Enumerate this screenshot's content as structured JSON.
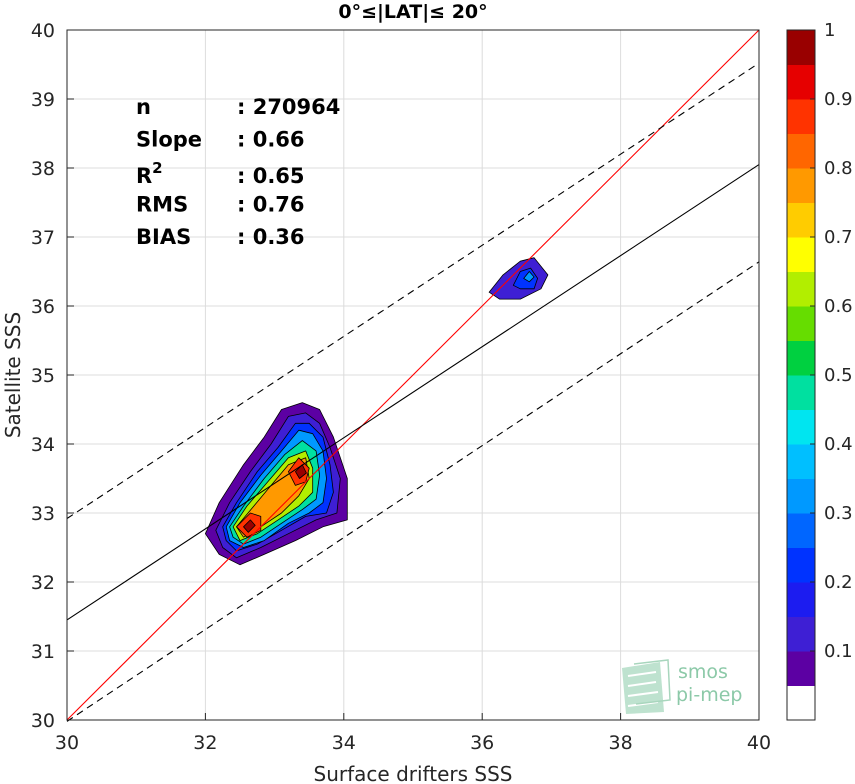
{
  "chart_data": {
    "type": "scatter",
    "title": "0°≤|LAT|≤ 20°",
    "xlabel": "Surface drifters SSS",
    "ylabel": "Satellite SSS",
    "xlim": [
      30,
      40
    ],
    "ylim": [
      30,
      40
    ],
    "xticks": [
      "30",
      "32",
      "34",
      "36",
      "38",
      "40"
    ],
    "yticks": [
      "30",
      "31",
      "32",
      "33",
      "34",
      "35",
      "36",
      "37",
      "38",
      "39",
      "40"
    ],
    "grid": true,
    "stats": [
      {
        "key": "n",
        "value": ": 270964"
      },
      {
        "key": "Slope",
        "value": ": 0.66"
      },
      {
        "key": "R",
        "sup": "2",
        "value": ": 0.65"
      },
      {
        "key": "RMS",
        "value": ": 0.76"
      },
      {
        "key": "BIAS",
        "value": ": 0.36"
      }
    ],
    "lines": {
      "identity": {
        "color": "#ff0000",
        "x": [
          30,
          40
        ],
        "y": [
          30,
          40
        ]
      },
      "regression": {
        "color": "#000000",
        "x": [
          30,
          40
        ],
        "y": [
          31.45,
          38.05
        ]
      },
      "upper_bound": {
        "color": "#000000",
        "style": "dashed",
        "x": [
          30,
          40
        ],
        "y": [
          32.92,
          39.52
        ]
      },
      "lower_bound": {
        "color": "#000000",
        "style": "dashed",
        "x": [
          30,
          40
        ],
        "y": [
          29.98,
          36.64
        ]
      }
    },
    "density_contours": [
      {
        "level": 0.05,
        "polygon": [
          [
            32.0,
            32.7
          ],
          [
            32.2,
            33.15
          ],
          [
            32.55,
            33.7
          ],
          [
            32.85,
            34.1
          ],
          [
            33.1,
            34.5
          ],
          [
            33.4,
            34.6
          ],
          [
            33.65,
            34.5
          ],
          [
            33.85,
            34.1
          ],
          [
            34.05,
            33.5
          ],
          [
            34.05,
            32.9
          ],
          [
            33.7,
            32.8
          ],
          [
            33.3,
            32.6
          ],
          [
            32.85,
            32.4
          ],
          [
            32.5,
            32.25
          ],
          [
            32.2,
            32.4
          ]
        ]
      },
      {
        "level": 0.1,
        "polygon": [
          [
            32.15,
            32.75
          ],
          [
            32.35,
            33.15
          ],
          [
            32.65,
            33.6
          ],
          [
            32.95,
            34.0
          ],
          [
            33.2,
            34.4
          ],
          [
            33.45,
            34.45
          ],
          [
            33.65,
            34.3
          ],
          [
            33.8,
            33.95
          ],
          [
            33.95,
            33.5
          ],
          [
            33.9,
            33.0
          ],
          [
            33.6,
            32.9
          ],
          [
            33.2,
            32.7
          ],
          [
            32.8,
            32.5
          ],
          [
            32.45,
            32.35
          ],
          [
            32.25,
            32.5
          ]
        ]
      },
      {
        "level": 0.2,
        "polygon": [
          [
            32.25,
            32.8
          ],
          [
            32.45,
            33.15
          ],
          [
            32.75,
            33.6
          ],
          [
            33.05,
            33.95
          ],
          [
            33.3,
            34.3
          ],
          [
            33.5,
            34.3
          ],
          [
            33.7,
            34.1
          ],
          [
            33.8,
            33.7
          ],
          [
            33.85,
            33.3
          ],
          [
            33.75,
            33.0
          ],
          [
            33.45,
            32.95
          ],
          [
            33.1,
            32.75
          ],
          [
            32.75,
            32.55
          ],
          [
            32.45,
            32.45
          ],
          [
            32.3,
            32.6
          ]
        ]
      },
      {
        "level": 0.3,
        "polygon": [
          [
            32.3,
            32.8
          ],
          [
            32.5,
            33.15
          ],
          [
            32.8,
            33.55
          ],
          [
            33.1,
            33.9
          ],
          [
            33.35,
            34.2
          ],
          [
            33.55,
            34.15
          ],
          [
            33.7,
            33.9
          ],
          [
            33.75,
            33.5
          ],
          [
            33.7,
            33.15
          ],
          [
            33.5,
            33.0
          ],
          [
            33.2,
            32.85
          ],
          [
            32.85,
            32.6
          ],
          [
            32.55,
            32.5
          ],
          [
            32.35,
            32.6
          ]
        ]
      },
      {
        "level": 0.45,
        "polygon": [
          [
            32.35,
            32.8
          ],
          [
            32.55,
            33.1
          ],
          [
            32.85,
            33.5
          ],
          [
            33.15,
            33.85
          ],
          [
            33.4,
            34.05
          ],
          [
            33.6,
            33.9
          ],
          [
            33.65,
            33.55
          ],
          [
            33.6,
            33.2
          ],
          [
            33.4,
            33.05
          ],
          [
            33.1,
            32.85
          ],
          [
            32.8,
            32.65
          ],
          [
            32.55,
            32.55
          ],
          [
            32.4,
            32.65
          ]
        ]
      },
      {
        "level": 0.6,
        "polygon": [
          [
            32.4,
            32.8
          ],
          [
            32.6,
            33.1
          ],
          [
            32.9,
            33.45
          ],
          [
            33.2,
            33.8
          ],
          [
            33.45,
            33.9
          ],
          [
            33.55,
            33.65
          ],
          [
            33.55,
            33.3
          ],
          [
            33.35,
            33.1
          ],
          [
            33.05,
            32.9
          ],
          [
            32.75,
            32.7
          ],
          [
            32.5,
            32.6
          ]
        ]
      },
      {
        "level": 0.75,
        "polygon": [
          [
            32.45,
            32.8
          ],
          [
            32.7,
            33.1
          ],
          [
            32.95,
            33.4
          ],
          [
            33.2,
            33.7
          ],
          [
            33.45,
            33.8
          ],
          [
            33.5,
            33.5
          ],
          [
            33.35,
            33.25
          ],
          [
            33.1,
            33.0
          ],
          [
            32.8,
            32.8
          ],
          [
            32.55,
            32.65
          ]
        ]
      },
      {
        "level": 0.85,
        "polygon": [
          [
            32.45,
            32.8
          ],
          [
            32.65,
            33.0
          ],
          [
            32.8,
            32.95
          ],
          [
            32.8,
            32.75
          ],
          [
            32.6,
            32.65
          ]
        ]
      },
      {
        "level": 0.85,
        "polygon": [
          [
            33.2,
            33.6
          ],
          [
            33.35,
            33.8
          ],
          [
            33.5,
            33.65
          ],
          [
            33.45,
            33.45
          ],
          [
            33.3,
            33.4
          ]
        ]
      },
      {
        "level": 0.95,
        "polygon": [
          [
            32.55,
            32.8
          ],
          [
            32.65,
            32.9
          ],
          [
            32.72,
            32.82
          ],
          [
            32.62,
            32.72
          ]
        ]
      },
      {
        "level": 0.95,
        "polygon": [
          [
            33.3,
            33.6
          ],
          [
            33.4,
            33.7
          ],
          [
            33.46,
            33.58
          ],
          [
            33.36,
            33.5
          ]
        ]
      },
      {
        "level": 0.1,
        "polygon": [
          [
            36.1,
            36.2
          ],
          [
            36.3,
            36.45
          ],
          [
            36.55,
            36.65
          ],
          [
            36.75,
            36.7
          ],
          [
            36.95,
            36.45
          ],
          [
            36.85,
            36.25
          ],
          [
            36.55,
            36.1
          ],
          [
            36.25,
            36.1
          ]
        ]
      },
      {
        "level": 0.2,
        "polygon": [
          [
            36.45,
            36.3
          ],
          [
            36.55,
            36.5
          ],
          [
            36.7,
            36.55
          ],
          [
            36.8,
            36.4
          ],
          [
            36.75,
            36.25
          ],
          [
            36.55,
            36.25
          ]
        ]
      },
      {
        "level": 0.3,
        "polygon": [
          [
            36.6,
            36.4
          ],
          [
            36.68,
            36.5
          ],
          [
            36.75,
            36.42
          ],
          [
            36.68,
            36.35
          ]
        ]
      }
    ],
    "colorbar": {
      "min": 0,
      "max": 1,
      "ticks": [
        "0.1",
        "0.2",
        "0.3",
        "0.4",
        "0.5",
        "0.6",
        "0.7",
        "0.8",
        "0.9",
        "1"
      ],
      "bands": [
        {
          "lo": 0.0,
          "hi": 0.05,
          "color": "#ffffff"
        },
        {
          "lo": 0.05,
          "hi": 0.1,
          "color": "#5c00a3"
        },
        {
          "lo": 0.1,
          "hi": 0.15,
          "color": "#3e1fd4"
        },
        {
          "lo": 0.15,
          "hi": 0.2,
          "color": "#1c1cf0"
        },
        {
          "lo": 0.2,
          "hi": 0.25,
          "color": "#0033ff"
        },
        {
          "lo": 0.25,
          "hi": 0.3,
          "color": "#0066ff"
        },
        {
          "lo": 0.3,
          "hi": 0.35,
          "color": "#0099ff"
        },
        {
          "lo": 0.35,
          "hi": 0.4,
          "color": "#00bfff"
        },
        {
          "lo": 0.4,
          "hi": 0.45,
          "color": "#00e5f0"
        },
        {
          "lo": 0.45,
          "hi": 0.5,
          "color": "#00e0a0"
        },
        {
          "lo": 0.5,
          "hi": 0.55,
          "color": "#00d040"
        },
        {
          "lo": 0.55,
          "hi": 0.6,
          "color": "#66dd00"
        },
        {
          "lo": 0.6,
          "hi": 0.65,
          "color": "#b2ee00"
        },
        {
          "lo": 0.65,
          "hi": 0.7,
          "color": "#ffff00"
        },
        {
          "lo": 0.7,
          "hi": 0.75,
          "color": "#ffcc00"
        },
        {
          "lo": 0.75,
          "hi": 0.8,
          "color": "#ff9900"
        },
        {
          "lo": 0.8,
          "hi": 0.85,
          "color": "#ff6600"
        },
        {
          "lo": 0.85,
          "hi": 0.9,
          "color": "#ff3300"
        },
        {
          "lo": 0.9,
          "hi": 0.95,
          "color": "#e60000"
        },
        {
          "lo": 0.95,
          "hi": 1.0,
          "color": "#990000"
        }
      ]
    }
  },
  "logo": {
    "line1": "smos",
    "line2": "pi-mep"
  }
}
